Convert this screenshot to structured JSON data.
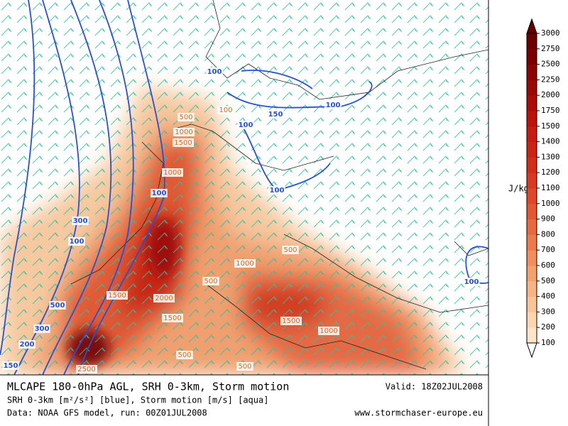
{
  "map": {
    "cape_labels": [
      "500",
      "100",
      "1000",
      "1500",
      "1000",
      "500",
      "1000",
      "500",
      "1500",
      "2000",
      "1500",
      "1500",
      "1000",
      "500",
      "500",
      "2500"
    ],
    "srh_labels": [
      "100",
      "100",
      "150",
      "100",
      "100",
      "100",
      "300",
      "100",
      "500",
      "300",
      "200",
      "150",
      "100"
    ],
    "cape_color": "#c86e28",
    "srh_color": "#2850d0",
    "wind_color": "#30c0a0"
  },
  "colorbar": {
    "unit": "J/kg",
    "ticks": [
      100,
      200,
      300,
      400,
      500,
      600,
      700,
      800,
      900,
      1000,
      1100,
      1200,
      1300,
      1400,
      1500,
      1750,
      2000,
      2250,
      2500,
      2750,
      3000
    ],
    "colors": [
      "#fde6c8",
      "#fbd6ae",
      "#f9c598",
      "#f7b482",
      "#f4a16e",
      "#f18e5c",
      "#ee7a4c",
      "#ea683e",
      "#e55632",
      "#e04628",
      "#da3820",
      "#d42c18",
      "#ce2212",
      "#c81a0e",
      "#bc120a",
      "#ac0c08",
      "#9c0806",
      "#8c0404",
      "#7c0202",
      "#6c0000"
    ],
    "over_color": "#600000",
    "under_color": "#ffffff"
  },
  "caption": {
    "title": "MLCAPE 180-0hPa AGL, SRH 0-3km, Storm motion",
    "line2": "SRH 0-3km [m²/s²] [blue], Storm motion [m/s] [aqua]",
    "line3": "Data: NOAA GFS model, run: 00Z01JUL2008",
    "valid": "Valid: 18Z02JUL2008",
    "site": "www.stormchaser-europe.eu"
  }
}
